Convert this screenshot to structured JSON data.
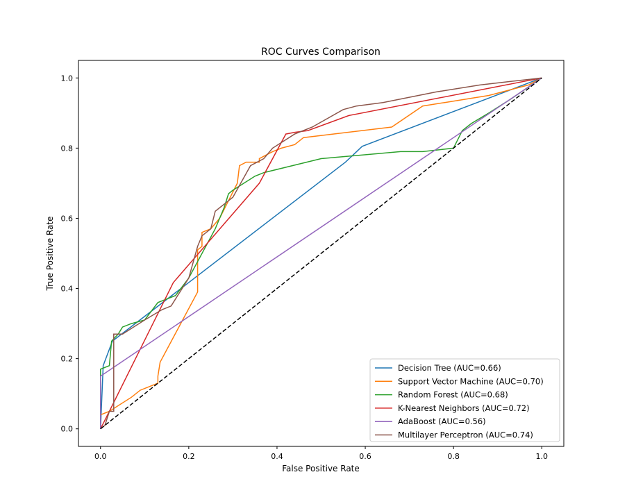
{
  "chart_data": {
    "type": "line",
    "title": "ROC Curves Comparison",
    "xlabel": "False Positive Rate",
    "ylabel": "True Positive Rate",
    "xlim": [
      -0.05,
      1.05
    ],
    "ylim": [
      -0.05,
      1.05
    ],
    "xticks": [
      "0.0",
      "0.2",
      "0.4",
      "0.6",
      "0.8",
      "1.0"
    ],
    "yticks": [
      "0.0",
      "0.2",
      "0.4",
      "0.6",
      "0.8",
      "1.0"
    ],
    "legend_position": "bottom-right",
    "series": [
      {
        "name": "Decision Tree (AUC=0.66)",
        "color": "#1f77b4",
        "x": [
          0,
          0.006,
          0.027,
          0.555,
          0.593,
          1
        ],
        "y": [
          0,
          0.18,
          0.25,
          0.76,
          0.805,
          1
        ]
      },
      {
        "name": "Support Vector Machine (AUC=0.70)",
        "color": "#ff7f0e",
        "x": [
          0,
          0,
          0.02,
          0.07,
          0.09,
          0.13,
          0.13,
          0.135,
          0.22,
          0.22,
          0.23,
          0.23,
          0.25,
          0.27,
          0.31,
          0.315,
          0.33,
          0.36,
          0.36,
          0.39,
          0.41,
          0.44,
          0.46,
          0.66,
          0.73,
          0.78,
          0.88,
          0.91,
          0.97,
          1
        ],
        "y": [
          0,
          0.04,
          0.05,
          0.09,
          0.11,
          0.13,
          0.15,
          0.19,
          0.39,
          0.51,
          0.52,
          0.56,
          0.57,
          0.6,
          0.7,
          0.75,
          0.76,
          0.76,
          0.77,
          0.79,
          0.8,
          0.81,
          0.83,
          0.86,
          0.92,
          0.93,
          0.95,
          0.96,
          0.98,
          1
        ]
      },
      {
        "name": "Random Forest (AUC=0.68)",
        "color": "#2ca02c",
        "x": [
          0,
          0,
          0.02,
          0.025,
          0.04,
          0.05,
          0.07,
          0.1,
          0.13,
          0.17,
          0.2,
          0.26,
          0.28,
          0.29,
          0.3,
          0.35,
          0.37,
          0.5,
          0.68,
          0.73,
          0.8,
          0.82,
          0.84,
          0.88,
          0.93,
          1
        ],
        "y": [
          0,
          0.17,
          0.18,
          0.25,
          0.27,
          0.29,
          0.3,
          0.31,
          0.36,
          0.38,
          0.43,
          0.57,
          0.63,
          0.67,
          0.68,
          0.72,
          0.73,
          0.77,
          0.79,
          0.79,
          0.8,
          0.85,
          0.87,
          0.9,
          0.94,
          1
        ]
      },
      {
        "name": "K-Nearest Neighbors (AUC=0.72)",
        "color": "#d62728",
        "x": [
          0,
          0.02,
          0.165,
          0.36,
          0.42,
          0.44,
          0.47,
          0.563,
          1
        ],
        "y": [
          0,
          0.05,
          0.417,
          0.7,
          0.84,
          0.845,
          0.85,
          0.893,
          1
        ]
      },
      {
        "name": "AdaBoost (AUC=0.56)",
        "color": "#9467bd",
        "x": [
          0,
          0,
          1
        ],
        "y": [
          0,
          0.15,
          1
        ]
      },
      {
        "name": "Multilayer Perceptron (AUC=0.74)",
        "color": "#8c564b",
        "x": [
          0,
          0.01,
          0.02,
          0.03,
          0.03,
          0.05,
          0.1,
          0.14,
          0.16,
          0.2,
          0.22,
          0.23,
          0.25,
          0.26,
          0.3,
          0.34,
          0.37,
          0.39,
          0.44,
          0.48,
          0.55,
          0.58,
          0.64,
          0.76,
          0.86,
          0.93,
          1
        ],
        "y": [
          0,
          0.01,
          0.05,
          0.05,
          0.27,
          0.27,
          0.31,
          0.34,
          0.35,
          0.43,
          0.52,
          0.55,
          0.57,
          0.62,
          0.66,
          0.75,
          0.77,
          0.8,
          0.84,
          0.86,
          0.91,
          0.92,
          0.93,
          0.96,
          0.98,
          0.99,
          1
        ]
      }
    ],
    "baseline": {
      "x": [
        0,
        1
      ],
      "y": [
        0,
        1
      ],
      "color": "#000000",
      "style": "dashed"
    }
  }
}
